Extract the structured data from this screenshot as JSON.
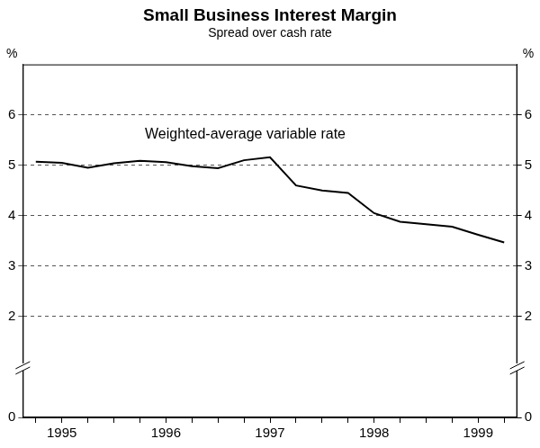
{
  "chart_data": {
    "type": "line",
    "title": "Small Business Interest Margin",
    "subtitle": "Spread over cash rate",
    "ylabel": "%",
    "annotation": "Weighted-average variable rate",
    "categories": [
      null,
      "1995",
      null,
      null,
      null,
      "1996",
      null,
      null,
      null,
      "1997",
      null,
      null,
      null,
      "1998",
      null,
      null,
      null,
      "1999",
      null
    ],
    "values": [
      5.07,
      5.05,
      4.95,
      5.04,
      5.09,
      5.06,
      4.98,
      4.94,
      5.1,
      5.16,
      4.6,
      4.5,
      4.45,
      4.05,
      3.88,
      3.83,
      3.78,
      3.62,
      3.47
    ],
    "color": "#000000",
    "ylim": [
      0,
      7
    ],
    "yticks": [
      0,
      2,
      3,
      4,
      5,
      6
    ],
    "grid": true
  }
}
